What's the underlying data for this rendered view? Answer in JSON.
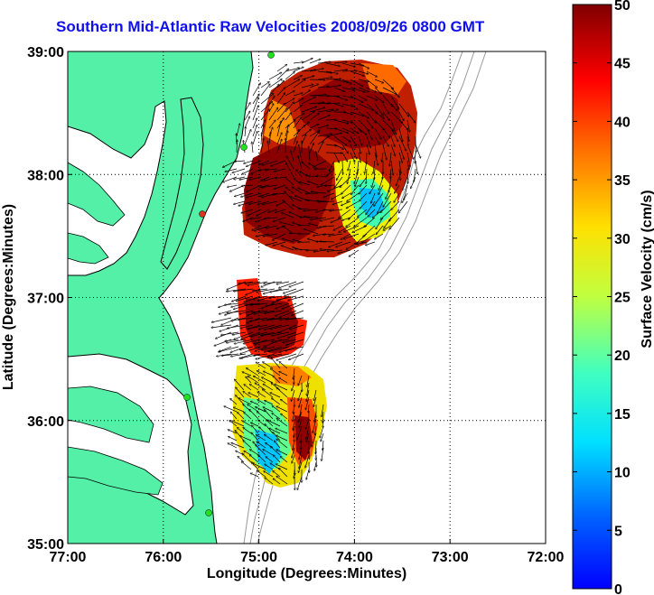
{
  "title": "Southern Mid-Atlantic Raw Velocities 2008/09/26 0800 GMT",
  "map": {
    "xlabel": "Longitude (Degrees:Minutes)",
    "ylabel": "Latitude (Degrees:Minutes)",
    "lon_ticks": [
      "77:00",
      "76:00",
      "75:00",
      "74:00",
      "73:00",
      "72:00"
    ],
    "lat_ticks": [
      "39:00",
      "38:00",
      "37:00",
      "36:00",
      "35:00"
    ],
    "lon_range": [
      -77,
      -72
    ],
    "lat_range": [
      35,
      39
    ],
    "grid": "dotted",
    "land_color": "#55f0a8",
    "water_color": "#ffffff"
  },
  "colorbar": {
    "label": "Surface Velocity (cm/s)",
    "ticks": [
      "0",
      "5",
      "10",
      "15",
      "20",
      "25",
      "30",
      "35",
      "40",
      "45",
      "50"
    ],
    "range": [
      0,
      50
    ],
    "colormap": "jet"
  }
}
